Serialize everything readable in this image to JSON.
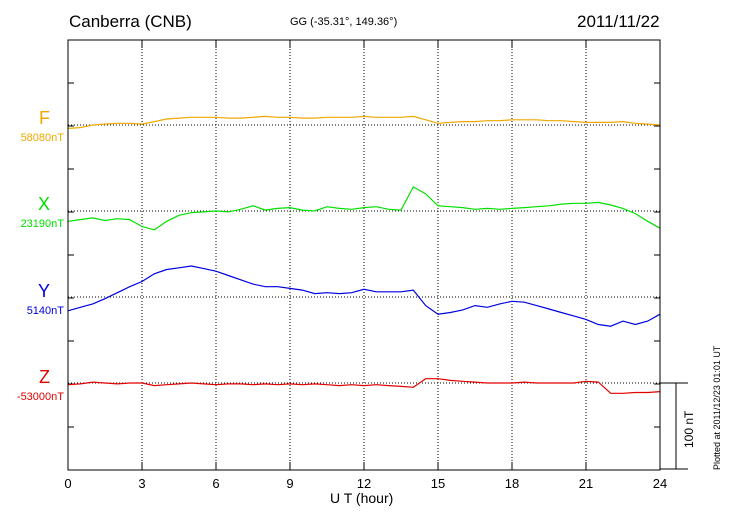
{
  "header": {
    "station": "Canberra (CNB)",
    "coords": "GG (-35.31°, 149.36°)",
    "date": "2011/11/22"
  },
  "footer": {
    "plotted": "Plotted at 2011/12/23 01:01  UT"
  },
  "scale_bar": {
    "label": "100 nT",
    "value_nT": 100
  },
  "colors": {
    "F": "#f0a800",
    "X": "#00e000",
    "Y": "#0000e0",
    "Z": "#e00000"
  },
  "components": [
    {
      "name": "F",
      "base": "58080nT"
    },
    {
      "name": "X",
      "base": "23190nT"
    },
    {
      "name": "Y",
      "base": "5140nT"
    },
    {
      "name": "Z",
      "base": "-53000nT"
    }
  ],
  "chart_data": {
    "type": "line",
    "title": "Canberra (CNB)",
    "xlabel": "U T (hour)",
    "xlim": [
      0,
      24
    ],
    "x_ticks": [
      0,
      3,
      6,
      9,
      12,
      15,
      18,
      21,
      24
    ],
    "grid": true,
    "x": [
      0,
      0.5,
      1,
      1.5,
      2,
      2.5,
      3,
      3.5,
      4,
      4.5,
      5,
      5.5,
      6,
      6.5,
      7,
      7.5,
      8,
      8.5,
      9,
      9.5,
      10,
      10.5,
      11,
      11.5,
      12,
      12.5,
      13,
      13.5,
      14,
      14.5,
      15,
      15.5,
      16,
      16.5,
      17,
      17.5,
      18,
      18.5,
      19,
      19.5,
      20,
      20.5,
      21,
      21.5,
      22,
      22.5,
      23,
      23.5,
      24
    ],
    "series": [
      {
        "name": "F",
        "baseline": "58080nT",
        "values": [
          -4,
          -3,
          0,
          1,
          2,
          2,
          1,
          4,
          7,
          8,
          9,
          9,
          9,
          8,
          8,
          9,
          10,
          9,
          9,
          8,
          8,
          9,
          9,
          9,
          10,
          9,
          9,
          9,
          10,
          6,
          2,
          3,
          4,
          4,
          5,
          5,
          6,
          6,
          6,
          5,
          5,
          4,
          3,
          3,
          3,
          4,
          2,
          1,
          0
        ]
      },
      {
        "name": "X",
        "baseline": "23190nT",
        "values": [
          -12,
          -10,
          -8,
          -11,
          -9,
          -10,
          -18,
          -22,
          -12,
          -5,
          -2,
          -1,
          0,
          -1,
          2,
          6,
          1,
          3,
          4,
          1,
          0,
          5,
          3,
          2,
          4,
          5,
          2,
          1,
          28,
          20,
          6,
          5,
          4,
          2,
          3,
          2,
          3,
          4,
          5,
          6,
          8,
          9,
          9,
          10,
          7,
          3,
          -3,
          -12,
          -20
        ]
      },
      {
        "name": "Y",
        "baseline": "5140nT",
        "values": [
          -16,
          -12,
          -8,
          -2,
          5,
          12,
          18,
          27,
          32,
          34,
          36,
          33,
          30,
          25,
          20,
          15,
          12,
          12,
          10,
          8,
          4,
          5,
          4,
          5,
          9,
          6,
          6,
          6,
          8,
          -10,
          -20,
          -18,
          -15,
          -10,
          -12,
          -8,
          -5,
          -6,
          -10,
          -14,
          -18,
          -22,
          -26,
          -32,
          -34,
          -28,
          -32,
          -28,
          -20
        ]
      },
      {
        "name": "Z",
        "baseline": "-53000nT",
        "values": [
          -2,
          -1,
          1,
          0,
          -1,
          0,
          0,
          -3,
          -2,
          -1,
          0,
          -1,
          -2,
          -1,
          -1,
          -2,
          -1,
          -2,
          -1,
          -2,
          -1,
          -2,
          -3,
          -2,
          -3,
          -2,
          -3,
          -4,
          -5,
          5,
          5,
          3,
          2,
          1,
          0,
          0,
          0,
          1,
          0,
          0,
          0,
          0,
          2,
          1,
          -12,
          -12,
          -11,
          -11,
          -10
        ]
      }
    ]
  }
}
